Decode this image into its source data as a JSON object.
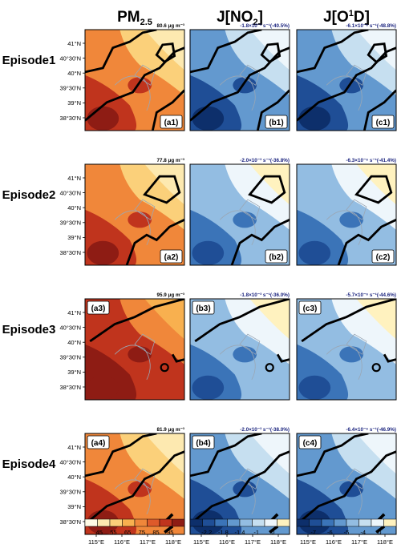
{
  "columns": [
    {
      "title": "PM",
      "sub": "2.5",
      "sup": ""
    },
    {
      "title": "J[NO",
      "sub": "2",
      "sup": "",
      "tail": "]"
    },
    {
      "title": "J[O",
      "sub": "",
      "sup": "1",
      "tail": "D]"
    }
  ],
  "rows": [
    "Episode1",
    "Episode2",
    "Episode3",
    "Episode4"
  ],
  "lat_ticks": [
    "41°N",
    "40°30'N",
    "40°N",
    "39°30'N",
    "39°N",
    "38°30'N"
  ],
  "lon_ticks": [
    "115°E",
    "116°E",
    "117°E",
    "118°E"
  ],
  "panels": [
    [
      {
        "label": "(a1)",
        "annotation": "80.6 μg m⁻³"
      },
      {
        "label": "(b1)",
        "annotation": "-1.8×10⁻³ s⁻¹(-40.5%)"
      },
      {
        "label": "(c1)",
        "annotation": "-6.1×10⁻⁶ s⁻¹(-48.8%)"
      }
    ],
    [
      {
        "label": "(a2)",
        "annotation": "77.8 μg m⁻³"
      },
      {
        "label": "(b2)",
        "annotation": "-2.0×10⁻³ s⁻¹(-36.8%)"
      },
      {
        "label": "(c2)",
        "annotation": "-6.3×10⁻⁶ s⁻¹(-41.4%)"
      }
    ],
    [
      {
        "label": "(a3)",
        "annotation": "95.9 μg m⁻³"
      },
      {
        "label": "(b3)",
        "annotation": "-1.8×10⁻³ s⁻¹(-36.0%)"
      },
      {
        "label": "(c3)",
        "annotation": "-5.7×10⁻⁶ s⁻¹(-44.6%)"
      }
    ],
    [
      {
        "label": "(a4)",
        "annotation": "81.9 μg m⁻³"
      },
      {
        "label": "(b4)",
        "annotation": "-2.0×10⁻³ s⁻¹(-38.0%)"
      },
      {
        "label": "(c4)",
        "annotation": "-6.4×10⁻⁶ s⁻¹(-46.9%)"
      }
    ]
  ],
  "colorbars": [
    {
      "ticks": [
        "45",
        "55",
        "65",
        "75",
        "85",
        "95"
      ],
      "colors": [
        "#fffbe6",
        "#fde9b0",
        "#fbd07a",
        "#f8b04f",
        "#f0873a",
        "#de5a2a",
        "#c0341d",
        "#8e1c14"
      ]
    },
    {
      "ticks": [
        "-2.2",
        "-1.8",
        "-1.4",
        "-1",
        "0"
      ],
      "colors": [
        "#0d2f6b",
        "#1f4e96",
        "#3b74b8",
        "#6399cf",
        "#93bde2",
        "#c6dff0",
        "#eef6fb",
        "#fff2bf"
      ]
    },
    {
      "ticks": [
        "-7",
        "-6",
        "-5",
        "-4",
        "0"
      ],
      "colors": [
        "#0d2f6b",
        "#1f4e96",
        "#3b74b8",
        "#6399cf",
        "#93bde2",
        "#c6dff0",
        "#eef6fb",
        "#fff2bf"
      ]
    }
  ],
  "annotation_colors": {
    "pm": "#000000",
    "j": "#1a237e"
  },
  "chart_data": {
    "type": "heatmap",
    "description_note": "",
    "panel_means": {
      "PM2.5_ugm3": [
        80.6,
        77.8,
        95.9,
        81.9
      ],
      "JNO2_change_s-1": [
        -0.0018,
        -0.002,
        -0.0018,
        -0.002
      ],
      "JNO2_change_percent": [
        -40.5,
        -36.8,
        -36.0,
        -38.0
      ],
      "JO1D_change_s-1": [
        -6.1e-06,
        -6.3e-06,
        -5.7e-06,
        -6.4e-06
      ],
      "JO1D_change_percent": [
        -48.8,
        -41.4,
        -44.6,
        -46.9
      ]
    },
    "xlabel": "",
    "ylabel": "",
    "xlim": [
      114.5,
      118.2
    ],
    "ylim": [
      38.0,
      41.5
    ]
  }
}
